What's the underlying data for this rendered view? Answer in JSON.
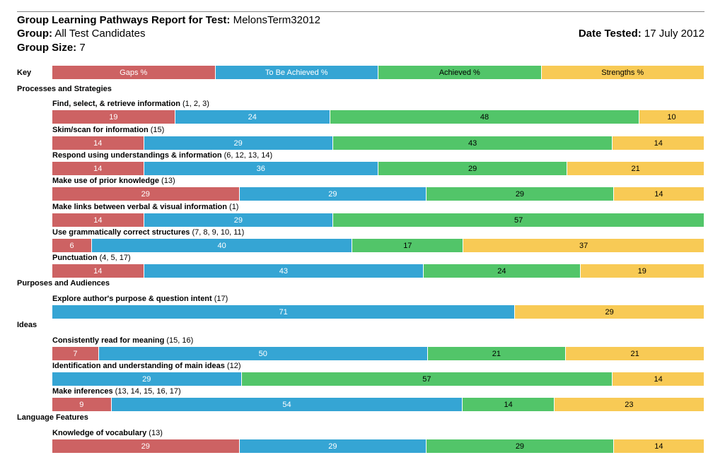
{
  "header": {
    "title_label": "Group Learning Pathways Report for Test:",
    "title_value": "MelonsTerm32012",
    "group_label": "Group:",
    "group_value": "All Test Candidates",
    "size_label": "Group Size:",
    "size_value": "7",
    "date_label": "Date Tested:",
    "date_value": "17 July 2012"
  },
  "key": {
    "label": "Key",
    "items": [
      {
        "label": "Gaps %"
      },
      {
        "label": "To Be Achieved %"
      },
      {
        "label": "Achieved %"
      },
      {
        "label": "Strengths %"
      }
    ]
  },
  "colors": {
    "gaps": "#cd6263",
    "tba": "#35a5d4",
    "ach": "#52c569",
    "str": "#f8ca55"
  },
  "chart_data": {
    "type": "bar",
    "stacked": true,
    "orientation": "horizontal",
    "unit": "%",
    "series_names": [
      "Gaps %",
      "To Be Achieved %",
      "Achieved %",
      "Strengths %"
    ],
    "sections": [
      {
        "title": "Processes and Strategies",
        "items": [
          {
            "name": "Find, select, & retrieve information",
            "q": "(1, 2, 3)",
            "values": [
              19,
              24,
              48,
              10
            ]
          },
          {
            "name": "Skim/scan for information",
            "q": "(15)",
            "values": [
              14,
              29,
              43,
              14
            ]
          },
          {
            "name": "Respond using understandings & information",
            "q": "(6, 12, 13, 14)",
            "values": [
              14,
              36,
              29,
              21
            ]
          },
          {
            "name": "Make use of prior knowledge",
            "q": "(13)",
            "values": [
              29,
              29,
              29,
              14
            ]
          },
          {
            "name": "Make links between verbal & visual information",
            "q": "(1)",
            "values": [
              14,
              29,
              57,
              0
            ]
          },
          {
            "name": "Use grammatically correct structures",
            "q": "(7, 8, 9, 10, 11)",
            "values": [
              6,
              40,
              17,
              37
            ]
          },
          {
            "name": "Punctuation",
            "q": "(4, 5, 17)",
            "values": [
              14,
              43,
              24,
              19
            ]
          }
        ]
      },
      {
        "title": "Purposes and Audiences",
        "items": [
          {
            "name": "Explore author's purpose & question intent",
            "q": "(17)",
            "values": [
              0,
              71,
              0,
              29
            ]
          }
        ]
      },
      {
        "title": "Ideas",
        "items": [
          {
            "name": "Consistently read for meaning",
            "q": "(15, 16)",
            "values": [
              7,
              50,
              21,
              21
            ]
          },
          {
            "name": "Identification and understanding of main ideas",
            "q": "(12)",
            "values": [
              0,
              29,
              57,
              14
            ]
          },
          {
            "name": "Make inferences",
            "q": "(13, 14, 15, 16, 17)",
            "values": [
              9,
              54,
              14,
              23
            ]
          }
        ]
      },
      {
        "title": "Language Features",
        "items": [
          {
            "name": "Knowledge of vocabulary",
            "q": "(13)",
            "values": [
              29,
              29,
              29,
              14
            ]
          }
        ]
      }
    ]
  }
}
